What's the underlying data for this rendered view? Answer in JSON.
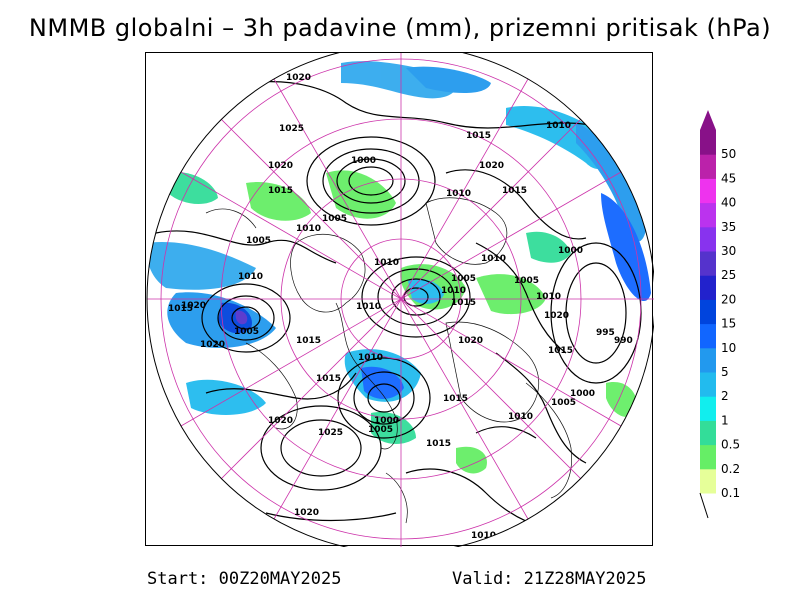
{
  "title": "NMMB globalni – 3h padavine (mm), prizemni pritisak (hPa)",
  "footer": {
    "start": "Start: 00Z20MAY2025",
    "valid": "Valid: 21Z28MAY2025"
  },
  "legend": {
    "levels": [
      "0.1",
      "0.2",
      "0.5",
      "1",
      "2",
      "5",
      "10",
      "15",
      "20",
      "25",
      "30",
      "35",
      "40",
      "45",
      "50"
    ],
    "colors": [
      "#e6ff99",
      "#66ee66",
      "#33dd99",
      "#11eeee",
      "#22bbee",
      "#2299ee",
      "#1166ff",
      "#0044dd",
      "#2222cc",
      "#5533cc",
      "#8833ee",
      "#bb33ee",
      "#ee33ee",
      "#bb22aa",
      "#881188"
    ]
  },
  "isobar_labels": [
    "1020",
    "1025",
    "1020",
    "1015",
    "1010",
    "1005",
    "1000",
    "1010",
    "1005",
    "1010",
    "1015",
    "1020",
    "1010",
    "1015",
    "1010",
    "1005",
    "1000",
    "1005",
    "1010",
    "1015",
    "1020",
    "1010",
    "1020",
    "1015",
    "1010",
    "1005",
    "1000",
    "995",
    "990",
    "1015",
    "1020",
    "1010",
    "1015",
    "1000",
    "1005",
    "1010",
    "1015",
    "1020",
    "1025",
    "1020",
    "1015",
    "1010",
    "1015",
    "1020",
    "1005",
    "1010"
  ],
  "colors": {
    "graticule": "#cc33aa",
    "isobar": "#000000",
    "coast": "#111111"
  }
}
